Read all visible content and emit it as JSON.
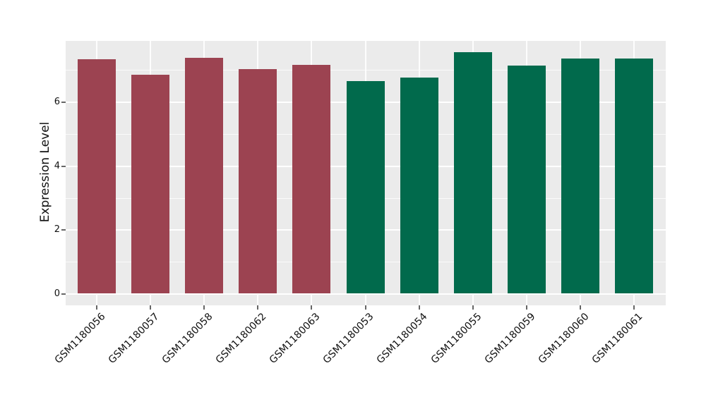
{
  "chart_data": {
    "type": "bar",
    "title": "",
    "xlabel": "",
    "ylabel": "Expression Level",
    "categories": [
      "GSM1180056",
      "GSM1180057",
      "GSM1180058",
      "GSM1180062",
      "GSM1180063",
      "GSM1180053",
      "GSM1180054",
      "GSM1180055",
      "GSM1180059",
      "GSM1180060",
      "GSM1180061"
    ],
    "values": [
      7.32,
      6.85,
      7.38,
      7.01,
      7.16,
      6.64,
      6.76,
      7.56,
      7.14,
      7.36,
      7.35
    ],
    "bar_colors": [
      "#9c4351",
      "#9c4351",
      "#9c4351",
      "#9c4351",
      "#9c4351",
      "#016a4c",
      "#016a4c",
      "#016a4c",
      "#016a4c",
      "#016a4c",
      "#016a4c"
    ],
    "group_colors": {
      "maroon": "#9c4351",
      "green": "#016a4c"
    },
    "yticks": [
      0,
      2,
      4,
      6
    ],
    "ytick_labels": [
      "0",
      "2",
      "4",
      "6"
    ],
    "yticks_minor": [
      1,
      3,
      5,
      7
    ],
    "ylim": [
      -0.35,
      7.92
    ],
    "grid": true,
    "legend": false
  },
  "style": {
    "panel_background": "#ebebeb",
    "grid_color": "#ffffff",
    "text_color": "#111111",
    "tick_color": "#666666",
    "outer_background": "#ffffff"
  }
}
